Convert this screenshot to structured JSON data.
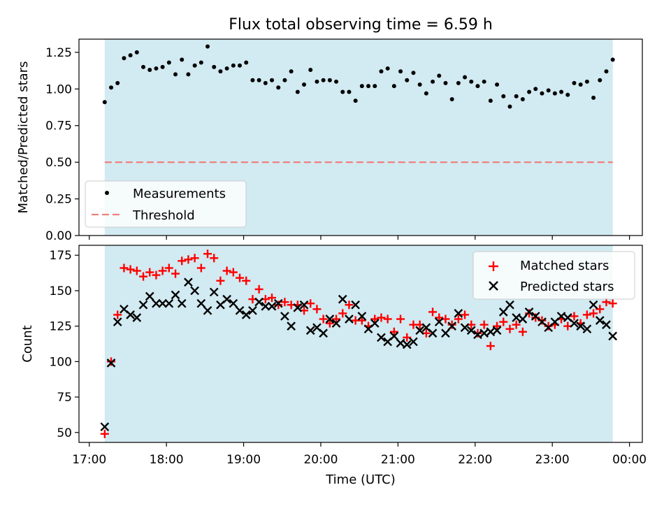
{
  "chart_data": [
    {
      "type": "scatter",
      "title": "Flux total observing time = 6.59 h",
      "ylabel": "Matched/Predicted stars",
      "xlabel": "",
      "ylim": [
        0,
        1.34
      ],
      "yticks": [
        "0.00",
        "0.25",
        "0.50",
        "0.75",
        "1.00",
        "1.25"
      ],
      "grid": false,
      "legend_position": "lower-left",
      "observing_window": {
        "start": "17:12",
        "end": "23:47",
        "color": "#add8e6"
      },
      "series": [
        {
          "name": "Measurements",
          "marker": "dot",
          "color": "#000000",
          "x": [
            "17:12",
            "17:17",
            "17:22",
            "17:27",
            "17:32",
            "17:37",
            "17:42",
            "17:47",
            "17:52",
            "17:57",
            "18:02",
            "18:07",
            "18:12",
            "18:17",
            "18:22",
            "18:27",
            "18:32",
            "18:37",
            "18:42",
            "18:47",
            "18:52",
            "18:57",
            "19:02",
            "19:07",
            "19:12",
            "19:17",
            "19:22",
            "19:27",
            "19:32",
            "19:37",
            "19:42",
            "19:47",
            "19:52",
            "19:57",
            "20:02",
            "20:07",
            "20:12",
            "20:17",
            "20:22",
            "20:27",
            "20:32",
            "20:37",
            "20:42",
            "20:47",
            "20:52",
            "20:57",
            "21:02",
            "21:07",
            "21:12",
            "21:17",
            "21:22",
            "21:27",
            "21:32",
            "21:37",
            "21:42",
            "21:47",
            "21:52",
            "21:57",
            "22:02",
            "22:07",
            "22:12",
            "22:17",
            "22:22",
            "22:27",
            "22:32",
            "22:37",
            "22:42",
            "22:47",
            "22:52",
            "22:57",
            "23:02",
            "23:07",
            "23:12",
            "23:17",
            "23:22",
            "23:27",
            "23:32",
            "23:37",
            "23:42",
            "23:47"
          ],
          "y": [
            0.91,
            1.01,
            1.04,
            1.21,
            1.23,
            1.25,
            1.15,
            1.13,
            1.14,
            1.15,
            1.18,
            1.1,
            1.2,
            1.1,
            1.16,
            1.18,
            1.29,
            1.15,
            1.12,
            1.14,
            1.16,
            1.16,
            1.18,
            1.06,
            1.06,
            1.04,
            1.06,
            1.01,
            1.06,
            1.12,
            0.98,
            1.03,
            1.13,
            1.05,
            1.06,
            1.06,
            1.05,
            0.98,
            0.98,
            0.92,
            1.02,
            1.02,
            1.02,
            1.12,
            1.14,
            1.02,
            1.12,
            1.06,
            1.11,
            1.03,
            0.97,
            1.05,
            1.09,
            1.04,
            0.93,
            1.04,
            1.08,
            1.05,
            1.02,
            1.05,
            0.92,
            1.03,
            0.95,
            0.88,
            0.95,
            0.93,
            0.98,
            1.0,
            0.97,
            0.99,
            0.97,
            0.98,
            0.96,
            1.04,
            1.03,
            1.05,
            0.94,
            1.06,
            1.12,
            1.2
          ]
        },
        {
          "name": "Threshold",
          "marker": "dashed-line",
          "color": "#f08080",
          "x": [
            "17:12",
            "23:47"
          ],
          "y": [
            0.5,
            0.5
          ]
        }
      ]
    },
    {
      "type": "scatter",
      "title": "",
      "ylabel": "Count",
      "xlabel": "Time (UTC)",
      "ylim": [
        43,
        182
      ],
      "yticks": [
        "50",
        "75",
        "100",
        "125",
        "150",
        "175"
      ],
      "xticks": [
        "17:00",
        "18:00",
        "19:00",
        "20:00",
        "21:00",
        "22:00",
        "23:00",
        "00:00"
      ],
      "grid": false,
      "legend_position": "top-right",
      "observing_window": {
        "start": "17:12",
        "end": "23:47",
        "color": "#add8e6"
      },
      "series": [
        {
          "name": "Matched stars",
          "marker": "plus",
          "color": "#ff0000",
          "x": [
            "17:12",
            "17:17",
            "17:22",
            "17:27",
            "17:32",
            "17:37",
            "17:42",
            "17:47",
            "17:52",
            "17:57",
            "18:02",
            "18:07",
            "18:12",
            "18:17",
            "18:22",
            "18:27",
            "18:32",
            "18:37",
            "18:42",
            "18:47",
            "18:52",
            "18:57",
            "19:02",
            "19:07",
            "19:12",
            "19:17",
            "19:22",
            "19:27",
            "19:32",
            "19:37",
            "19:42",
            "19:47",
            "19:52",
            "19:57",
            "20:02",
            "20:07",
            "20:12",
            "20:17",
            "20:22",
            "20:27",
            "20:32",
            "20:37",
            "20:42",
            "20:47",
            "20:52",
            "20:57",
            "21:02",
            "21:07",
            "21:12",
            "21:17",
            "21:22",
            "21:27",
            "21:32",
            "21:37",
            "21:42",
            "21:47",
            "21:52",
            "21:57",
            "22:02",
            "22:07",
            "22:12",
            "22:17",
            "22:22",
            "22:27",
            "22:32",
            "22:37",
            "22:42",
            "22:47",
            "22:52",
            "22:57",
            "23:02",
            "23:07",
            "23:12",
            "23:17",
            "23:22",
            "23:27",
            "23:32",
            "23:37",
            "23:42",
            "23:47"
          ],
          "y": [
            49,
            100,
            133,
            166,
            165,
            164,
            160,
            163,
            161,
            164,
            166,
            162,
            171,
            172,
            173,
            166,
            176,
            173,
            157,
            164,
            163,
            159,
            157,
            144,
            151,
            144,
            145,
            140,
            142,
            140,
            140,
            136,
            141,
            137,
            130,
            127,
            130,
            134,
            140,
            129,
            129,
            125,
            130,
            131,
            130,
            121,
            130,
            117,
            126,
            126,
            120,
            135,
            131,
            130,
            126,
            130,
            133,
            126,
            120,
            126,
            111,
            125,
            128,
            123,
            126,
            121,
            134,
            131,
            129,
            125,
            126,
            130,
            125,
            132,
            127,
            133,
            134,
            137,
            142,
            141
          ]
        },
        {
          "name": "Predicted stars",
          "marker": "x",
          "color": "#000000",
          "x": [
            "17:12",
            "17:17",
            "17:22",
            "17:27",
            "17:32",
            "17:37",
            "17:42",
            "17:47",
            "17:52",
            "17:57",
            "18:02",
            "18:07",
            "18:12",
            "18:17",
            "18:22",
            "18:27",
            "18:32",
            "18:37",
            "18:42",
            "18:47",
            "18:52",
            "18:57",
            "19:02",
            "19:07",
            "19:12",
            "19:17",
            "19:22",
            "19:27",
            "19:32",
            "19:37",
            "19:42",
            "19:47",
            "19:52",
            "19:57",
            "20:02",
            "20:07",
            "20:12",
            "20:17",
            "20:22",
            "20:27",
            "20:32",
            "20:37",
            "20:42",
            "20:47",
            "20:52",
            "20:57",
            "21:02",
            "21:07",
            "21:12",
            "21:17",
            "21:22",
            "21:27",
            "21:32",
            "21:37",
            "21:42",
            "21:47",
            "21:52",
            "21:57",
            "22:02",
            "22:07",
            "22:12",
            "22:17",
            "22:22",
            "22:27",
            "22:32",
            "22:37",
            "22:42",
            "22:47",
            "22:52",
            "22:57",
            "23:02",
            "23:07",
            "23:12",
            "23:17",
            "23:22",
            "23:27",
            "23:32",
            "23:37",
            "23:42",
            "23:47"
          ],
          "y": [
            54,
            99,
            128,
            137,
            133,
            131,
            140,
            146,
            141,
            141,
            141,
            147,
            141,
            156,
            150,
            141,
            136,
            149,
            140,
            144,
            141,
            136,
            133,
            136,
            142,
            139,
            139,
            141,
            132,
            125,
            138,
            140,
            122,
            124,
            120,
            130,
            127,
            144,
            130,
            140,
            132,
            123,
            127,
            117,
            114,
            118,
            113,
            112,
            114,
            122,
            124,
            120,
            128,
            120,
            125,
            134,
            124,
            122,
            119,
            120,
            121,
            122,
            135,
            140,
            131,
            130,
            135,
            132,
            128,
            124,
            128,
            132,
            131,
            127,
            125,
            123,
            140,
            129,
            126,
            118
          ]
        }
      ]
    }
  ]
}
